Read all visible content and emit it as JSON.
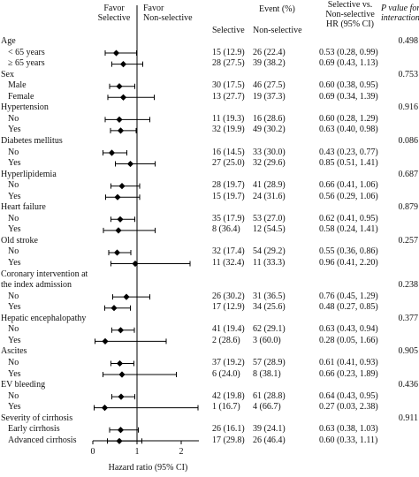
{
  "header": {
    "favor_selective": "Favor\nSelective",
    "favor_nonselective": "Favor\nNon-selective",
    "event_title": "Event (%)",
    "col_selective": "Selective",
    "col_nonselective": "Non-selective",
    "hr_title": "Selective vs.\nNon-selective\nHR (95% CI)",
    "p_title": "P value for\ninteraction"
  },
  "chart_data": {
    "type": "forest",
    "xlabel": "Hazard ratio (95% CI)",
    "xlim": [
      0,
      2.4
    ],
    "xticks": [
      0,
      1,
      2
    ],
    "reference_line": 1,
    "rows": [
      {
        "label": "Age",
        "kind": "group",
        "p": "0.498"
      },
      {
        "label": "< 65 years",
        "kind": "sub",
        "sel": "15 (12.9)",
        "non": "26 (22.4)",
        "hr_text": "0.53 (0.28, 0.99)",
        "hr": 0.53,
        "lo": 0.28,
        "hi": 0.99
      },
      {
        "label": "≥ 65 years",
        "kind": "sub",
        "sel": "28 (27.5)",
        "non": "39 (38.2)",
        "hr_text": "0.69 (0.43, 1.13)",
        "hr": 0.69,
        "lo": 0.43,
        "hi": 1.13
      },
      {
        "label": "Sex",
        "kind": "group",
        "p": "0.753"
      },
      {
        "label": "Male",
        "kind": "sub",
        "sel": "30 (17.5)",
        "non": "46 (27.5)",
        "hr_text": "0.60 (0.38, 0.95)",
        "hr": 0.6,
        "lo": 0.38,
        "hi": 0.95
      },
      {
        "label": "Female",
        "kind": "sub",
        "sel": "13 (27.7)",
        "non": "19 (37.3)",
        "hr_text": "0.69 (0.34, 1.39)",
        "hr": 0.69,
        "lo": 0.34,
        "hi": 1.39
      },
      {
        "label": "Hypertension",
        "kind": "group",
        "p": "0.916"
      },
      {
        "label": "No",
        "kind": "sub",
        "sel": "11 (19.3)",
        "non": "16 (28.6)",
        "hr_text": "0.60 (0.28, 1.29)",
        "hr": 0.6,
        "lo": 0.28,
        "hi": 1.29
      },
      {
        "label": "Yes",
        "kind": "sub",
        "sel": "32 (19.9)",
        "non": "49 (30.2)",
        "hr_text": "0.63 (0.40, 0.98)",
        "hr": 0.63,
        "lo": 0.4,
        "hi": 0.98
      },
      {
        "label": "Diabetes mellitus",
        "kind": "group",
        "p": "0.086"
      },
      {
        "label": "No",
        "kind": "sub",
        "sel": "16 (14.5)",
        "non": "33 (30.0)",
        "hr_text": "0.43 (0.23, 0.77)",
        "hr": 0.43,
        "lo": 0.23,
        "hi": 0.77
      },
      {
        "label": "Yes",
        "kind": "sub",
        "sel": "27 (25.0)",
        "non": "32 (29.6)",
        "hr_text": "0.85 (0.51, 1.41)",
        "hr": 0.85,
        "lo": 0.51,
        "hi": 1.41
      },
      {
        "label": "Hyperlipidemia",
        "kind": "group",
        "p": "0.687"
      },
      {
        "label": "No",
        "kind": "sub",
        "sel": "28 (19.7)",
        "non": "41 (28.9)",
        "hr_text": "0.66 (0.41, 1.06)",
        "hr": 0.66,
        "lo": 0.41,
        "hi": 1.06
      },
      {
        "label": "Yes",
        "kind": "sub",
        "sel": "15 (19.7)",
        "non": "24 (31.6)",
        "hr_text": "0.56 (0.29, 1.06)",
        "hr": 0.56,
        "lo": 0.29,
        "hi": 1.06
      },
      {
        "label": "Heart failure",
        "kind": "group",
        "p": "0.879"
      },
      {
        "label": "No",
        "kind": "sub",
        "sel": "35 (17.9)",
        "non": "53 (27.0)",
        "hr_text": "0.62 (0.41, 0.95)",
        "hr": 0.62,
        "lo": 0.41,
        "hi": 0.95
      },
      {
        "label": "Yes",
        "kind": "sub",
        "sel": "8 (36.4)",
        "non": "12 (54.5)",
        "hr_text": "0.58 (0.24, 1.41)",
        "hr": 0.58,
        "lo": 0.24,
        "hi": 1.41
      },
      {
        "label": "Old stroke",
        "kind": "group",
        "p": "0.257"
      },
      {
        "label": "No",
        "kind": "sub",
        "sel": "32 (17.4)",
        "non": "54 (29.2)",
        "hr_text": "0.55 (0.36, 0.86)",
        "hr": 0.55,
        "lo": 0.36,
        "hi": 0.86
      },
      {
        "label": "Yes",
        "kind": "sub",
        "sel": "11 (32.4)",
        "non": "11 (33.3)",
        "hr_text": "0.96 (0.41, 2.20)",
        "hr": 0.96,
        "lo": 0.41,
        "hi": 2.2
      },
      {
        "label": "Coronary intervention at\nthe index admission",
        "kind": "group",
        "lines": 2,
        "p": "0.238"
      },
      {
        "label": "No",
        "kind": "sub",
        "sel": "26 (30.2)",
        "non": "31 (36.5)",
        "hr_text": "0.76 (0.45, 1.29)",
        "hr": 0.76,
        "lo": 0.45,
        "hi": 1.29
      },
      {
        "label": "Yes",
        "kind": "sub",
        "sel": "17 (12.9)",
        "non": "34 (25.6)",
        "hr_text": "0.48 (0.27, 0.85)",
        "hr": 0.48,
        "lo": 0.27,
        "hi": 0.85
      },
      {
        "label": "Hepatic encephalopathy",
        "kind": "group",
        "p": "0.377"
      },
      {
        "label": "No",
        "kind": "sub",
        "sel": "41 (19.4)",
        "non": "62 (29.1)",
        "hr_text": "0.63 (0.43, 0.94)",
        "hr": 0.63,
        "lo": 0.43,
        "hi": 0.94
      },
      {
        "label": "Yes",
        "kind": "sub",
        "sel": "2 (28.6)",
        "non": "3 (60.0)",
        "hr_text": "0.28 (0.05, 1.66)",
        "hr": 0.28,
        "lo": 0.05,
        "hi": 1.66
      },
      {
        "label": "Ascites",
        "kind": "group",
        "p": "0.905"
      },
      {
        "label": "No",
        "kind": "sub",
        "sel": "37 (19.2)",
        "non": "57 (28.9)",
        "hr_text": "0.61 (0.41, 0.93)",
        "hr": 0.61,
        "lo": 0.41,
        "hi": 0.93
      },
      {
        "label": "Yes",
        "kind": "sub",
        "sel": "6 (24.0)",
        "non": "8 (38.1)",
        "hr_text": "0.66 (0.23, 1.89)",
        "hr": 0.66,
        "lo": 0.23,
        "hi": 1.89
      },
      {
        "label": "EV bleeding",
        "kind": "group",
        "p": "0.436"
      },
      {
        "label": "No",
        "kind": "sub",
        "sel": "42 (19.8)",
        "non": "61 (28.8)",
        "hr_text": "0.64 (0.43, 0.95)",
        "hr": 0.64,
        "lo": 0.43,
        "hi": 0.95
      },
      {
        "label": "Yes",
        "kind": "sub",
        "sel": "1 (16.7)",
        "non": "4 (66.7)",
        "hr_text": "0.27 (0.03, 2.38)",
        "hr": 0.27,
        "lo": 0.03,
        "hi": 2.38
      },
      {
        "label": "Severity of cirrhosis",
        "kind": "group",
        "p": "0.911"
      },
      {
        "label": "Early cirrhosis",
        "kind": "sub",
        "sel": "26 (16.1)",
        "non": "39 (24.1)",
        "hr_text": "0.63 (0.38, 1.03)",
        "hr": 0.63,
        "lo": 0.38,
        "hi": 1.03
      },
      {
        "label": "Advanced cirrhosis",
        "kind": "sub",
        "sel": "17 (29.8)",
        "non": "26 (46.4)",
        "hr_text": "0.60 (0.33, 1.11)",
        "hr": 0.6,
        "lo": 0.33,
        "hi": 1.11
      }
    ]
  }
}
